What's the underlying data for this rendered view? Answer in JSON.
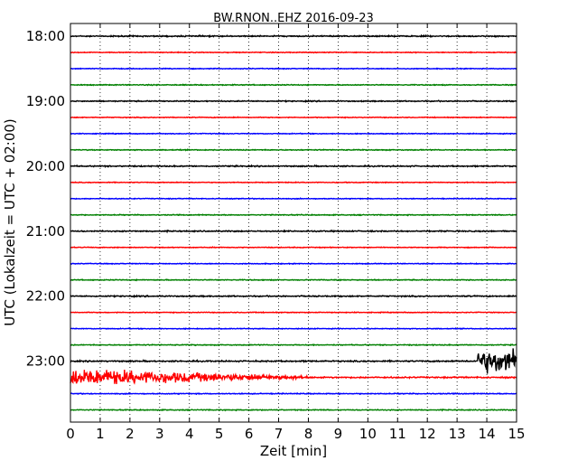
{
  "chart_data": {
    "type": "line",
    "title": "BW.RNON..EHZ 2016-09-23",
    "xlabel": "Zeit  [min]",
    "ylabel": "UTC (Lokalzeit = UTC + 02:00)",
    "xlim": [
      0,
      15
    ],
    "x_ticks": [
      "0",
      "1",
      "2",
      "3",
      "4",
      "5",
      "6",
      "7",
      "8",
      "9",
      "10",
      "11",
      "12",
      "13",
      "14",
      "15"
    ],
    "y_tick_labels": [
      "18:00",
      "19:00",
      "20:00",
      "21:00",
      "22:00",
      "23:00"
    ],
    "grid": "dotted-vertical",
    "trace_colors": [
      "#000000",
      "#ff0000",
      "#0000ff",
      "#008000"
    ],
    "series": [
      {
        "start": "18:00",
        "noise": 0.9
      },
      {
        "start": "18:15",
        "noise": 0.6
      },
      {
        "start": "18:30",
        "noise": 0.6
      },
      {
        "start": "18:45",
        "noise": 0.7
      },
      {
        "start": "19:00",
        "noise": 0.8
      },
      {
        "start": "19:15",
        "noise": 0.6
      },
      {
        "start": "19:30",
        "noise": 0.6
      },
      {
        "start": "19:45",
        "noise": 0.7
      },
      {
        "start": "20:00",
        "noise": 0.9
      },
      {
        "start": "20:15",
        "noise": 0.6
      },
      {
        "start": "20:30",
        "noise": 0.6
      },
      {
        "start": "20:45",
        "noise": 0.7
      },
      {
        "start": "21:00",
        "noise": 0.9
      },
      {
        "start": "21:15",
        "noise": 0.6
      },
      {
        "start": "21:30",
        "noise": 0.6
      },
      {
        "start": "21:45",
        "noise": 0.7
      },
      {
        "start": "22:00",
        "noise": 0.9
      },
      {
        "start": "22:15",
        "noise": 0.6
      },
      {
        "start": "22:30",
        "noise": 0.6
      },
      {
        "start": "22:45",
        "noise": 0.7
      },
      {
        "start": "23:00",
        "noise": 1.0,
        "event": {
          "from": 13.7,
          "to": 15.0,
          "amplitude": 18
        }
      },
      {
        "start": "23:15",
        "noise": 1.0,
        "event": {
          "from": 0.0,
          "to": 8.0,
          "amplitude": 13,
          "decay": true
        }
      },
      {
        "start": "23:30",
        "noise": 0.7
      },
      {
        "start": "23:45",
        "noise": 0.7
      }
    ]
  }
}
